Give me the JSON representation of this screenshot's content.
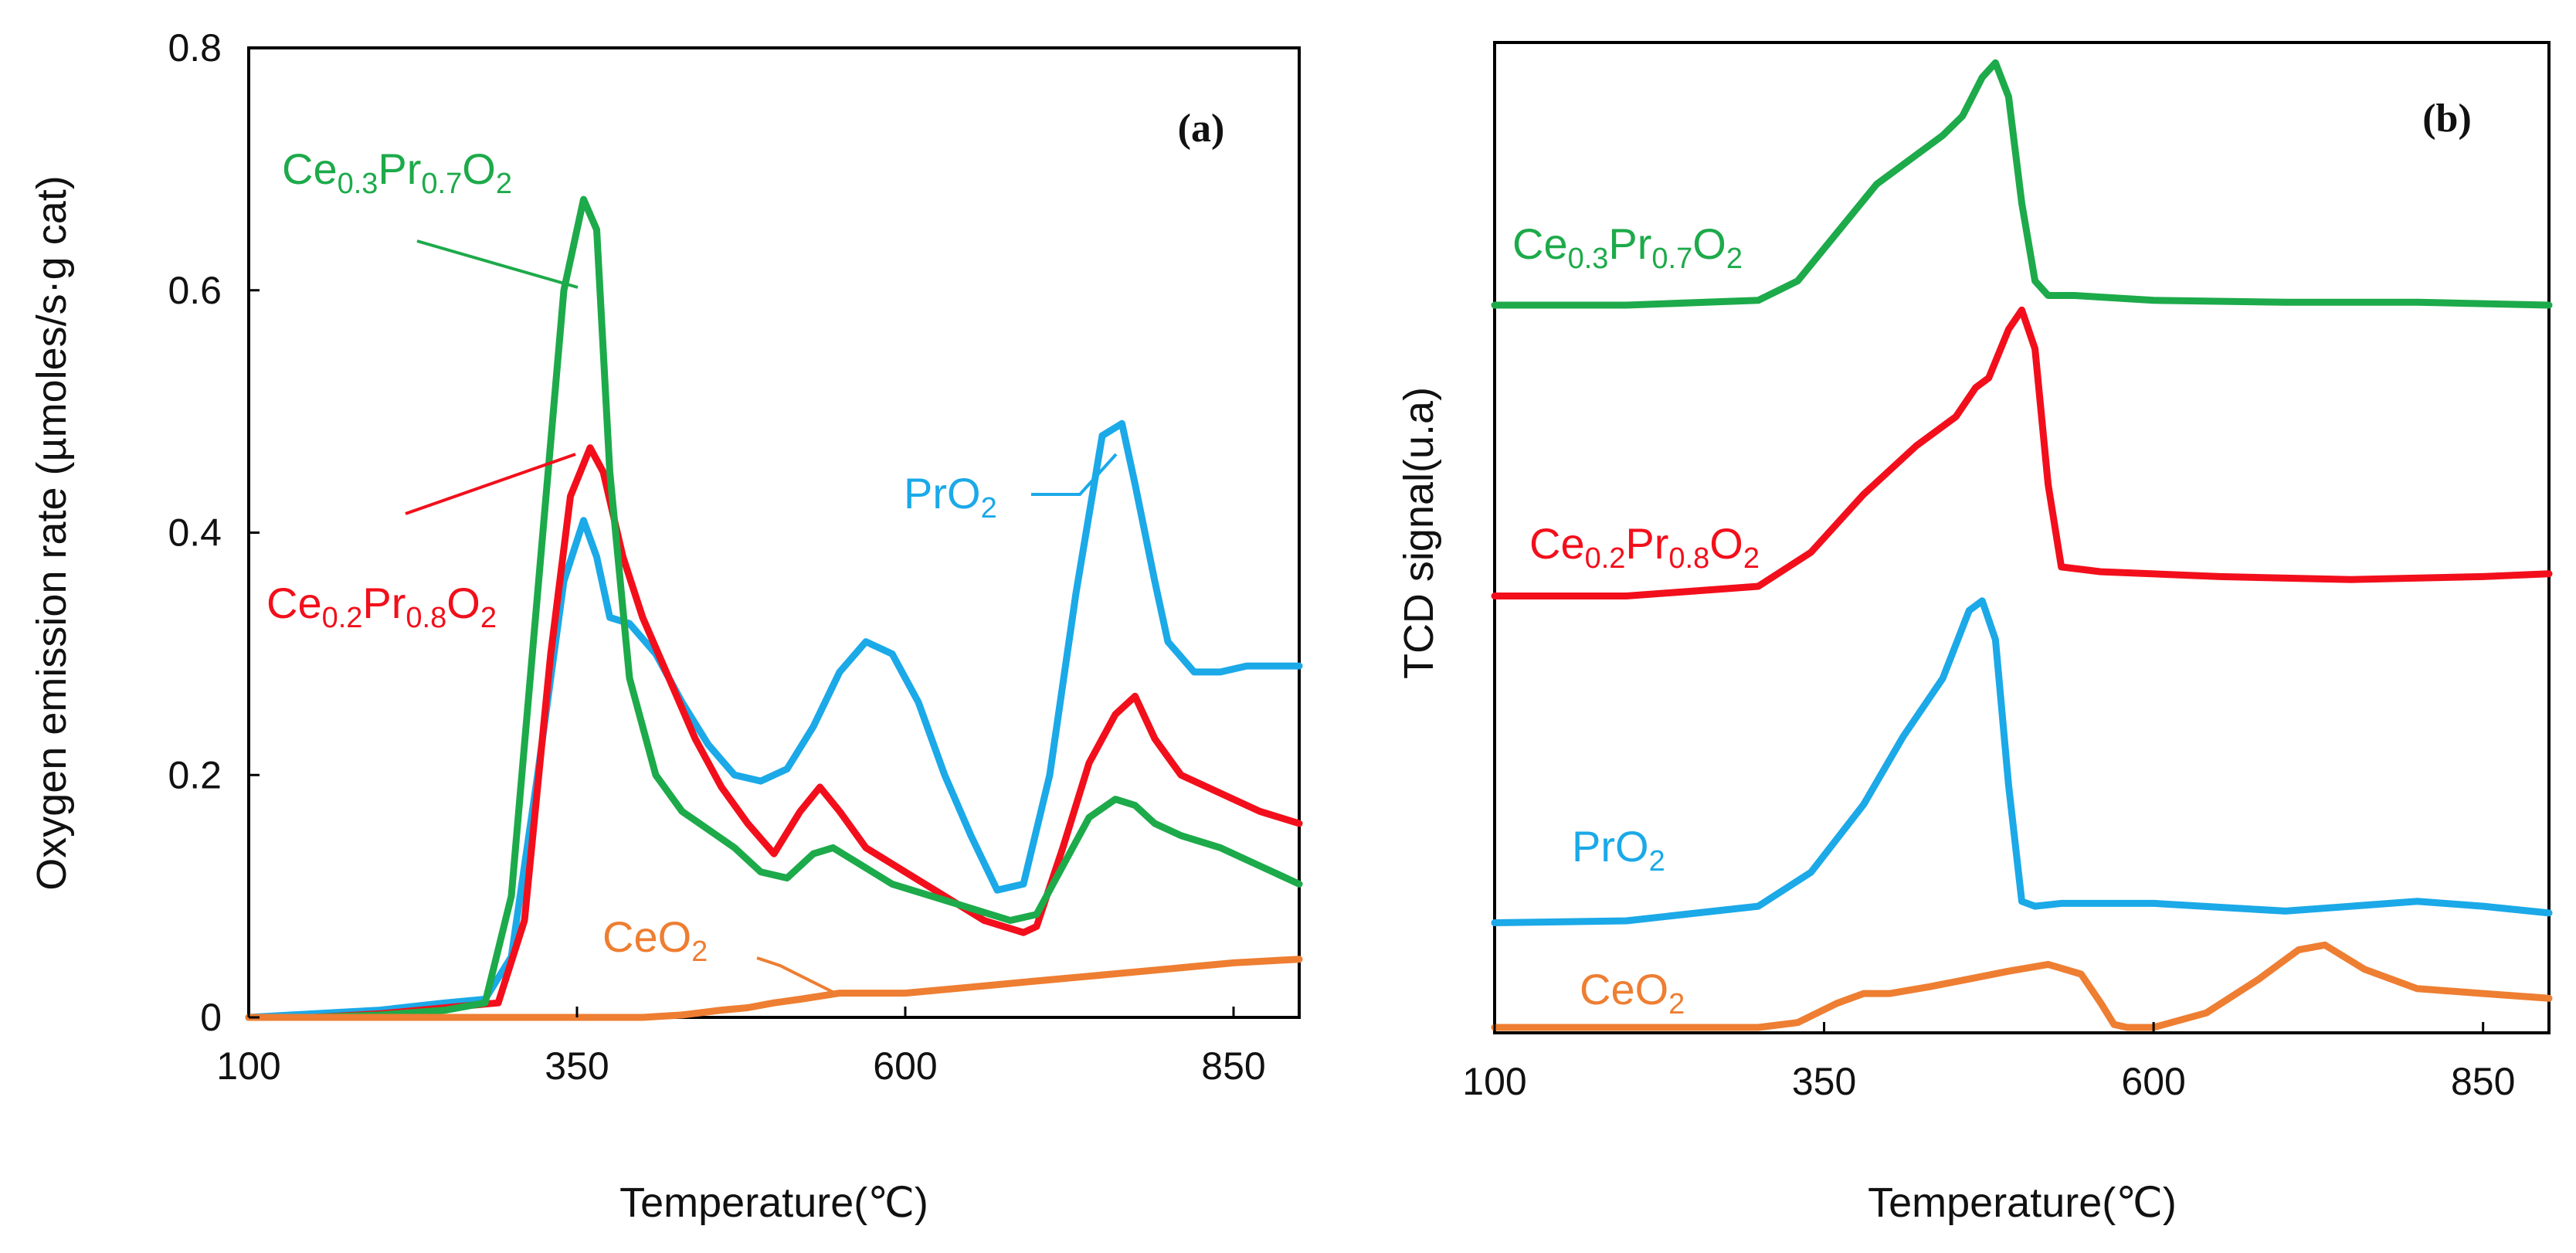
{
  "chart_data": [
    {
      "panel": "(a)",
      "type": "line",
      "xlabel": "Temperature(℃)",
      "ylabel": "Oxygen emission rate (µmoles/s·g cat)",
      "xlim": [
        100,
        900
      ],
      "ylim": [
        0,
        0.8
      ],
      "xticks": [
        "100",
        "350",
        "600",
        "850"
      ],
      "yticks": [
        "0",
        "0.2",
        "0.4",
        "0.6",
        "0.8"
      ],
      "series": [
        {
          "name": "PrO2",
          "color": "#1BA9E8",
          "label": {
            "main": "PrO",
            "sub": "2"
          },
          "x": [
            100,
            150,
            200,
            250,
            280,
            300,
            320,
            340,
            355,
            365,
            375,
            390,
            410,
            430,
            450,
            470,
            490,
            510,
            530,
            550,
            570,
            590,
            610,
            630,
            650,
            670,
            690,
            710,
            730,
            750,
            765,
            775,
            790,
            800,
            820,
            840,
            860,
            880,
            900
          ],
          "y": [
            0,
            0.003,
            0.006,
            0.012,
            0.015,
            0.05,
            0.2,
            0.36,
            0.41,
            0.38,
            0.33,
            0.325,
            0.3,
            0.26,
            0.225,
            0.2,
            0.195,
            0.205,
            0.24,
            0.285,
            0.31,
            0.3,
            0.26,
            0.2,
            0.15,
            0.105,
            0.11,
            0.2,
            0.35,
            0.48,
            0.49,
            0.44,
            0.36,
            0.31,
            0.285,
            0.285,
            0.29,
            0.29,
            0.29
          ]
        },
        {
          "name": "Ce0.2Pr0.8O2",
          "color": "#F20F1B",
          "label": {
            "parts": [
              [
                "Ce",
                ""
              ],
              [
                "0.2",
                "sub"
              ],
              [
                "Pr",
                ""
              ],
              [
                "0.8",
                "sub"
              ],
              [
                "O",
                ""
              ],
              [
                "2",
                "sub"
              ]
            ]
          },
          "x": [
            100,
            150,
            200,
            250,
            290,
            310,
            330,
            345,
            360,
            370,
            385,
            400,
            420,
            440,
            460,
            480,
            500,
            520,
            535,
            550,
            570,
            600,
            630,
            660,
            690,
            700,
            720,
            740,
            760,
            775,
            790,
            810,
            840,
            870,
            900
          ],
          "y": [
            0,
            0,
            0.003,
            0.008,
            0.012,
            0.08,
            0.3,
            0.43,
            0.47,
            0.45,
            0.38,
            0.33,
            0.28,
            0.23,
            0.19,
            0.16,
            0.135,
            0.17,
            0.19,
            0.17,
            0.14,
            0.12,
            0.1,
            0.08,
            0.07,
            0.075,
            0.14,
            0.21,
            0.25,
            0.265,
            0.23,
            0.2,
            0.185,
            0.17,
            0.16
          ]
        },
        {
          "name": "Ce0.3Pr0.7O2",
          "color": "#1DAA4A",
          "label": {
            "parts": [
              [
                "Ce",
                ""
              ],
              [
                "0.3",
                "sub"
              ],
              [
                "Pr",
                ""
              ],
              [
                "0.7",
                "sub"
              ],
              [
                "O",
                ""
              ],
              [
                "2",
                "sub"
              ]
            ]
          },
          "x": [
            100,
            150,
            200,
            250,
            280,
            300,
            320,
            340,
            355,
            365,
            375,
            390,
            410,
            430,
            450,
            470,
            490,
            510,
            530,
            545,
            560,
            590,
            620,
            650,
            680,
            700,
            720,
            740,
            760,
            775,
            790,
            810,
            840,
            870,
            900
          ],
          "y": [
            0,
            0,
            0.002,
            0.006,
            0.012,
            0.1,
            0.35,
            0.6,
            0.675,
            0.65,
            0.45,
            0.28,
            0.2,
            0.17,
            0.155,
            0.14,
            0.12,
            0.115,
            0.135,
            0.14,
            0.13,
            0.11,
            0.1,
            0.09,
            0.08,
            0.085,
            0.125,
            0.165,
            0.18,
            0.175,
            0.16,
            0.15,
            0.14,
            0.125,
            0.11
          ]
        },
        {
          "name": "CeO2",
          "color": "#EE7E32",
          "label": {
            "main": "CeO",
            "sub": "2"
          },
          "x": [
            100,
            200,
            300,
            400,
            430,
            460,
            480,
            500,
            520,
            550,
            600,
            650,
            700,
            750,
            800,
            850,
            900
          ],
          "y": [
            0,
            0,
            0,
            0,
            0.002,
            0.006,
            0.008,
            0.012,
            0.015,
            0.02,
            0.02,
            0.025,
            0.03,
            0.035,
            0.04,
            0.045,
            0.048
          ]
        }
      ]
    },
    {
      "panel": "(b)",
      "type": "line",
      "xlabel": "Temperature(℃)",
      "ylabel": "TCD signal(u.a)",
      "xlim": [
        100,
        900
      ],
      "ylim": [
        0,
        1
      ],
      "xticks": [
        "100",
        "350",
        "600",
        "850"
      ],
      "yticks": [],
      "series": [
        {
          "name": "Ce0.3Pr0.7O2",
          "color": "#1DAA4A",
          "label": {
            "parts": [
              [
                "Ce",
                ""
              ],
              [
                "0.3",
                "sub"
              ],
              [
                "Pr",
                ""
              ],
              [
                "0.7",
                "sub"
              ],
              [
                "O",
                ""
              ],
              [
                "2",
                "sub"
              ]
            ]
          },
          "x": [
            100,
            200,
            300,
            330,
            360,
            390,
            420,
            440,
            455,
            470,
            480,
            490,
            500,
            510,
            520,
            540,
            600,
            700,
            800,
            900
          ],
          "y": [
            0.745,
            0.745,
            0.75,
            0.77,
            0.82,
            0.87,
            0.9,
            0.92,
            0.94,
            0.98,
            0.995,
            0.96,
            0.85,
            0.77,
            0.755,
            0.755,
            0.75,
            0.748,
            0.748,
            0.745
          ]
        },
        {
          "name": "Ce0.2Pr0.8O2",
          "color": "#F20F1B",
          "label": {
            "parts": [
              [
                "Ce",
                ""
              ],
              [
                "0.2",
                "sub"
              ],
              [
                "Pr",
                ""
              ],
              [
                "0.8",
                "sub"
              ],
              [
                "O",
                ""
              ],
              [
                "2",
                "sub"
              ]
            ]
          },
          "x": [
            100,
            200,
            300,
            340,
            380,
            420,
            450,
            465,
            475,
            490,
            500,
            510,
            520,
            530,
            560,
            650,
            750,
            850,
            900
          ],
          "y": [
            0.445,
            0.445,
            0.455,
            0.49,
            0.55,
            0.6,
            0.63,
            0.66,
            0.67,
            0.72,
            0.74,
            0.7,
            0.56,
            0.475,
            0.47,
            0.465,
            0.462,
            0.465,
            0.468
          ]
        },
        {
          "name": "PrO2",
          "color": "#1BA9E8",
          "label": {
            "main": "PrO",
            "sub": "2"
          },
          "x": [
            100,
            200,
            300,
            340,
            380,
            410,
            440,
            460,
            470,
            480,
            490,
            500,
            510,
            530,
            600,
            700,
            800,
            850,
            900
          ],
          "y": [
            0.108,
            0.11,
            0.125,
            0.16,
            0.23,
            0.3,
            0.36,
            0.43,
            0.44,
            0.4,
            0.25,
            0.13,
            0.125,
            0.128,
            0.128,
            0.12,
            0.13,
            0.125,
            0.118
          ]
        },
        {
          "name": "CeO2",
          "color": "#EE7E32",
          "label": {
            "main": "CeO",
            "sub": "2"
          },
          "x": [
            100,
            200,
            300,
            330,
            360,
            380,
            400,
            430,
            460,
            490,
            520,
            545,
            560,
            570,
            580,
            600,
            640,
            680,
            710,
            730,
            760,
            800,
            850,
            900
          ],
          "y": [
            0,
            0,
            0,
            0.005,
            0.025,
            0.035,
            0.035,
            0.042,
            0.05,
            0.058,
            0.065,
            0.055,
            0.025,
            0.003,
            0,
            0,
            0.015,
            0.05,
            0.08,
            0.085,
            0.06,
            0.04,
            0.035,
            0.03
          ]
        }
      ]
    }
  ]
}
